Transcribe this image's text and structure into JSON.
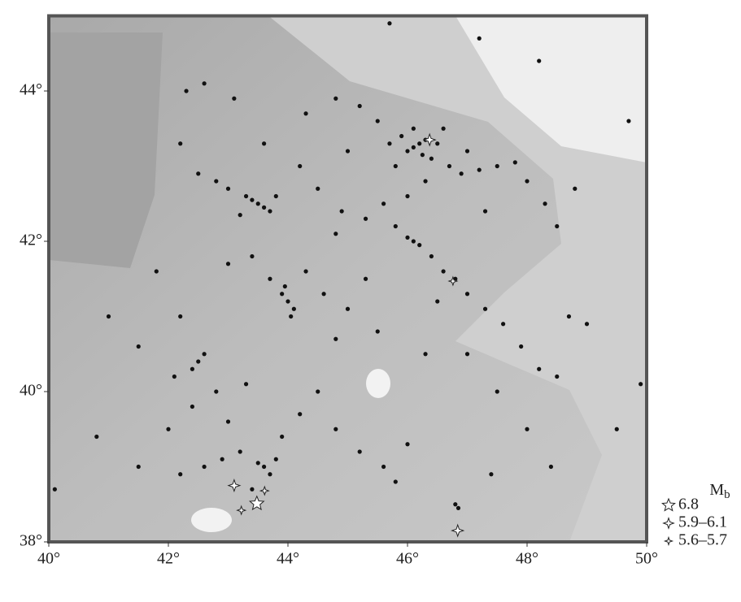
{
  "chart_data": {
    "type": "scatter",
    "xlim": [
      40,
      50
    ],
    "ylim": [
      38,
      45
    ],
    "xticks": [
      {
        "value": 40,
        "label": "40°"
      },
      {
        "value": 42,
        "label": "42°"
      },
      {
        "value": 44,
        "label": "44°"
      },
      {
        "value": 46,
        "label": "46°"
      },
      {
        "value": 48,
        "label": "48°"
      },
      {
        "value": 50,
        "label": "50°"
      }
    ],
    "yticks": [
      {
        "value": 38,
        "label": "38°"
      },
      {
        "value": 40,
        "label": "40°"
      },
      {
        "value": 42,
        "label": "42°"
      },
      {
        "value": 44,
        "label": "44°"
      }
    ],
    "legend_title": {
      "main": "M",
      "sub": "b"
    },
    "legend_position": "lower right outside",
    "series": [
      {
        "color": "#111111",
        "x": [
          46.2,
          46.1,
          46.3,
          46.0,
          46.4,
          45.9,
          46.5,
          46.25,
          45.8,
          46.6,
          46.1,
          45.7,
          46.7,
          46.9,
          47.2,
          47.5,
          47.8,
          48.0,
          48.3,
          48.5,
          47.0,
          46.3,
          45.5,
          45.2,
          44.8,
          44.3,
          45.0,
          46.0,
          45.6,
          47.3,
          43.5,
          43.4,
          43.6,
          43.3,
          43.7,
          43.2,
          43.8,
          43.0,
          42.8,
          42.5,
          42.2,
          42.3,
          42.6,
          43.1,
          43.6,
          44.2,
          44.5,
          44.9,
          46.1,
          46.0,
          46.2,
          46.4,
          46.6,
          46.8,
          47.0,
          47.3,
          47.6,
          47.9,
          48.2,
          48.5,
          45.8,
          45.3,
          44.8,
          46.5,
          47.0,
          47.5,
          48.0,
          48.4,
          44.0,
          43.9,
          44.1,
          43.95,
          44.05,
          43.7,
          44.3,
          43.4,
          43.0,
          44.6,
          45.0,
          45.3,
          44.8,
          45.5,
          42.5,
          42.4,
          42.6,
          42.1,
          42.8,
          42.0,
          42.4,
          43.0,
          43.3,
          41.5,
          41.0,
          42.2,
          41.8,
          43.6,
          43.7,
          43.5,
          43.8,
          43.2,
          42.9,
          42.6,
          42.2,
          43.4,
          43.9,
          44.2,
          44.5,
          44.8,
          45.2,
          45.6,
          46.0,
          45.8,
          46.8,
          46.85,
          41.5,
          40.8,
          40.1,
          48.7,
          49.0,
          49.5,
          49.7,
          48.2,
          47.2,
          45.7,
          49.9,
          47.4,
          46.3,
          48.8
        ],
        "values": [
          43.3,
          43.25,
          43.35,
          43.2,
          43.1,
          43.4,
          43.3,
          43.15,
          43.0,
          43.5,
          43.5,
          43.3,
          43.0,
          42.9,
          42.95,
          43.0,
          43.05,
          42.8,
          42.5,
          42.2,
          43.2,
          42.8,
          43.6,
          43.8,
          43.9,
          43.7,
          43.2,
          42.6,
          42.5,
          42.4,
          42.5,
          42.55,
          42.45,
          42.6,
          42.4,
          42.35,
          42.6,
          42.7,
          42.8,
          42.9,
          43.3,
          44.0,
          44.1,
          43.9,
          43.3,
          43.0,
          42.7,
          42.4,
          42.0,
          42.05,
          41.95,
          41.8,
          41.6,
          41.5,
          41.3,
          41.1,
          40.9,
          40.6,
          40.3,
          40.2,
          42.2,
          42.3,
          42.1,
          41.2,
          40.5,
          40.0,
          39.5,
          39.0,
          41.2,
          41.3,
          41.1,
          41.4,
          41.0,
          41.5,
          41.6,
          41.8,
          41.7,
          41.3,
          41.1,
          41.5,
          40.7,
          40.8,
          40.4,
          40.3,
          40.5,
          40.2,
          40.0,
          39.5,
          39.8,
          39.6,
          40.1,
          40.6,
          41.0,
          41.0,
          41.6,
          39.0,
          38.9,
          39.05,
          39.1,
          39.2,
          39.1,
          39.0,
          38.9,
          38.7,
          39.4,
          39.7,
          40.0,
          39.5,
          39.2,
          39.0,
          39.3,
          38.8,
          38.5,
          38.45,
          39.0,
          39.4,
          38.7,
          41.0,
          40.9,
          39.5,
          43.6,
          44.4,
          44.7,
          44.9,
          40.1,
          38.9,
          40.5,
          42.7
        ]
      },
      {
        "name": "6.8",
        "color": "#ffffff",
        "x": [
          43.48
        ],
        "values": [
          38.51
        ]
      },
      {
        "name": "5.9–6.1",
        "color": "#ffffff",
        "x": [
          43.1,
          46.37,
          46.84
        ],
        "values": [
          38.75,
          43.35,
          38.15
        ]
      },
      {
        "name": "5.6–5.7",
        "color": "#ffffff",
        "x": [
          43.22,
          43.61,
          46.76
        ],
        "values": [
          38.42,
          38.68,
          41.47
        ]
      }
    ]
  }
}
